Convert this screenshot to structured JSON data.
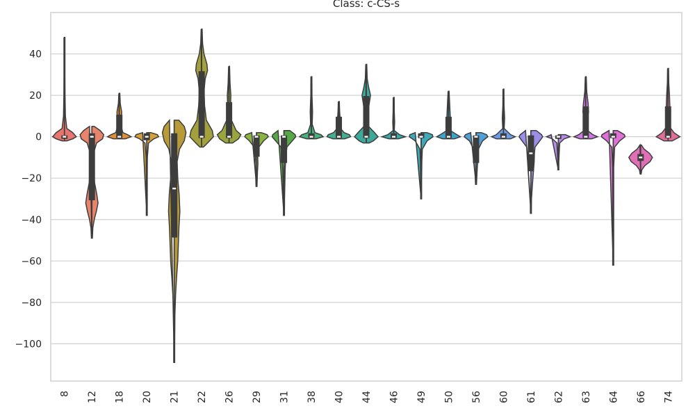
{
  "chart_data": {
    "type": "violin",
    "title": "Class: c-CS-s",
    "xlabel": "",
    "ylabel": "",
    "ylim": [
      -118,
      60
    ],
    "yticks": [
      40,
      20,
      0,
      -20,
      -40,
      -60,
      -80,
      -100
    ],
    "ytick_labels": [
      "40",
      "20",
      "0",
      "−20",
      "−40",
      "−60",
      "−80",
      "−100"
    ],
    "grid": true,
    "categories": [
      "8",
      "12",
      "18",
      "20",
      "21",
      "22",
      "26",
      "29",
      "31",
      "38",
      "40",
      "44",
      "46",
      "49",
      "50",
      "56",
      "60",
      "61",
      "62",
      "63",
      "64",
      "66",
      "74"
    ],
    "violins": [
      {
        "category": "8",
        "color": "#e8766f",
        "min": -2,
        "max": 48,
        "q1": 0,
        "median": 0,
        "q3": 0,
        "density": [
          [
            48,
            0.02
          ],
          [
            30,
            0.03
          ],
          [
            20,
            0.05
          ],
          [
            10,
            0.08
          ],
          [
            4,
            0.2
          ],
          [
            2,
            0.7
          ],
          [
            0,
            1.0
          ],
          [
            -1,
            0.7
          ],
          [
            -2,
            0.2
          ]
        ]
      },
      {
        "category": "12",
        "color": "#e8846a",
        "min": -49,
        "max": 5,
        "q1": -30,
        "median": 0,
        "q3": 1,
        "density": [
          [
            5,
            0.2
          ],
          [
            3,
            0.7
          ],
          [
            1,
            1.0
          ],
          [
            -1,
            0.9
          ],
          [
            -3,
            0.4
          ],
          [
            -8,
            0.14
          ],
          [
            -15,
            0.16
          ],
          [
            -22,
            0.22
          ],
          [
            -28,
            0.42
          ],
          [
            -32,
            0.52
          ],
          [
            -36,
            0.38
          ],
          [
            -40,
            0.2
          ],
          [
            -44,
            0.08
          ],
          [
            -49,
            0.03
          ]
        ]
      },
      {
        "category": "18",
        "color": "#e29038",
        "min": -1,
        "max": 21,
        "q1": 0,
        "median": 0,
        "q3": 10,
        "density": [
          [
            21,
            0.03
          ],
          [
            16,
            0.08
          ],
          [
            12,
            0.2
          ],
          [
            9,
            0.18
          ],
          [
            5,
            0.15
          ],
          [
            2,
            0.3
          ],
          [
            1,
            0.7
          ],
          [
            0,
            1.0
          ],
          [
            -1,
            0.5
          ]
        ]
      },
      {
        "category": "20",
        "color": "#d4a03a",
        "min": -38,
        "max": 2,
        "q1": -1,
        "median": 0,
        "q3": 1,
        "density": [
          [
            2,
            0.35
          ],
          [
            1,
            0.9
          ],
          [
            0,
            1.0
          ],
          [
            -1,
            0.6
          ],
          [
            -3,
            0.15
          ],
          [
            -10,
            0.05
          ],
          [
            -20,
            0.03
          ],
          [
            -38,
            0.02
          ]
        ]
      },
      {
        "category": "21",
        "color": "#b89a38",
        "min": -109,
        "max": 8,
        "q1": -48,
        "median": -25,
        "q3": 1,
        "density": [
          [
            8,
            0.4
          ],
          [
            5,
            0.85
          ],
          [
            2,
            1.0
          ],
          [
            -2,
            0.85
          ],
          [
            -6,
            0.45
          ],
          [
            -12,
            0.25
          ],
          [
            -20,
            0.3
          ],
          [
            -28,
            0.42
          ],
          [
            -36,
            0.48
          ],
          [
            -44,
            0.4
          ],
          [
            -52,
            0.35
          ],
          [
            -60,
            0.3
          ],
          [
            -68,
            0.2
          ],
          [
            -76,
            0.12
          ],
          [
            -86,
            0.06
          ],
          [
            -100,
            0.03
          ],
          [
            -109,
            0.02
          ]
        ]
      },
      {
        "category": "22",
        "color": "#a5a03e",
        "min": -5,
        "max": 52,
        "q1": 0,
        "median": 0,
        "q3": 31,
        "density": [
          [
            52,
            0.02
          ],
          [
            45,
            0.08
          ],
          [
            40,
            0.2
          ],
          [
            35,
            0.45
          ],
          [
            32,
            0.5
          ],
          [
            28,
            0.3
          ],
          [
            22,
            0.2
          ],
          [
            15,
            0.25
          ],
          [
            8,
            0.4
          ],
          [
            3,
            0.9
          ],
          [
            0,
            1.0
          ],
          [
            -3,
            0.5
          ],
          [
            -5,
            0.15
          ]
        ]
      },
      {
        "category": "26",
        "color": "#9aa63d",
        "min": -3,
        "max": 34,
        "q1": 0,
        "median": 0,
        "q3": 16,
        "density": [
          [
            34,
            0.03
          ],
          [
            26,
            0.08
          ],
          [
            20,
            0.15
          ],
          [
            14,
            0.12
          ],
          [
            8,
            0.2
          ],
          [
            3,
            0.6
          ],
          [
            1,
            1.0
          ],
          [
            -1,
            0.8
          ],
          [
            -3,
            0.3
          ]
        ]
      },
      {
        "category": "29",
        "color": "#8ab441",
        "min": -24,
        "max": 2,
        "q1": -9,
        "median": 0,
        "q3": 0,
        "density": [
          [
            2,
            0.4
          ],
          [
            1,
            0.9
          ],
          [
            0,
            1.0
          ],
          [
            -2,
            0.6
          ],
          [
            -5,
            0.2
          ],
          [
            -9,
            0.1
          ],
          [
            -13,
            0.12
          ],
          [
            -17,
            0.08
          ],
          [
            -24,
            0.03
          ]
        ]
      },
      {
        "category": "31",
        "color": "#55a845",
        "min": -38,
        "max": 3,
        "q1": -12,
        "median": 0,
        "q3": 0,
        "density": [
          [
            3,
            0.5
          ],
          [
            1,
            0.95
          ],
          [
            0,
            1.0
          ],
          [
            -2,
            0.7
          ],
          [
            -5,
            0.25
          ],
          [
            -10,
            0.15
          ],
          [
            -16,
            0.1
          ],
          [
            -22,
            0.08
          ],
          [
            -30,
            0.05
          ],
          [
            -38,
            0.02
          ]
        ]
      },
      {
        "category": "38",
        "color": "#48b07a",
        "min": -1,
        "max": 29,
        "q1": 0,
        "median": 0,
        "q3": 1,
        "density": [
          [
            29,
            0.02
          ],
          [
            20,
            0.05
          ],
          [
            12,
            0.1
          ],
          [
            6,
            0.07
          ],
          [
            2,
            0.3
          ],
          [
            1,
            0.8
          ],
          [
            0,
            1.0
          ],
          [
            -1,
            0.4
          ]
        ]
      },
      {
        "category": "40",
        "color": "#45ad90",
        "min": -1,
        "max": 17,
        "q1": 0,
        "median": 0,
        "q3": 9,
        "density": [
          [
            17,
            0.03
          ],
          [
            12,
            0.07
          ],
          [
            8,
            0.12
          ],
          [
            4,
            0.15
          ],
          [
            2,
            0.45
          ],
          [
            1,
            0.9
          ],
          [
            0,
            1.0
          ],
          [
            -1,
            0.5
          ]
        ]
      },
      {
        "category": "44",
        "color": "#3ea89a",
        "min": -3,
        "max": 35,
        "q1": 0,
        "median": 0,
        "q3": 19,
        "density": [
          [
            35,
            0.02
          ],
          [
            28,
            0.08
          ],
          [
            24,
            0.2
          ],
          [
            20,
            0.36
          ],
          [
            16,
            0.25
          ],
          [
            10,
            0.12
          ],
          [
            5,
            0.2
          ],
          [
            2,
            0.7
          ],
          [
            0,
            1.0
          ],
          [
            -2,
            0.6
          ],
          [
            -3,
            0.25
          ]
        ]
      },
      {
        "category": "46",
        "color": "#3aa9a8",
        "min": -1,
        "max": 19,
        "q1": 0,
        "median": 0,
        "q3": 1,
        "density": [
          [
            19,
            0.02
          ],
          [
            12,
            0.05
          ],
          [
            7,
            0.08
          ],
          [
            3,
            0.05
          ],
          [
            1,
            0.5
          ],
          [
            0,
            1.0
          ],
          [
            -1,
            0.4
          ]
        ]
      },
      {
        "category": "49",
        "color": "#3eaab8",
        "min": -30,
        "max": 2,
        "q1": 0,
        "median": 0,
        "q3": 1,
        "density": [
          [
            2,
            0.5
          ],
          [
            1,
            0.95
          ],
          [
            0,
            1.0
          ],
          [
            -2,
            0.5
          ],
          [
            -6,
            0.1
          ],
          [
            -12,
            0.06
          ],
          [
            -20,
            0.04
          ],
          [
            -30,
            0.02
          ]
        ]
      },
      {
        "category": "50",
        "color": "#3ca5c7",
        "min": -1,
        "max": 22,
        "q1": 0,
        "median": 0,
        "q3": 9,
        "density": [
          [
            22,
            0.03
          ],
          [
            15,
            0.1
          ],
          [
            10,
            0.14
          ],
          [
            6,
            0.1
          ],
          [
            3,
            0.15
          ],
          [
            1,
            0.7
          ],
          [
            0,
            1.0
          ],
          [
            -1,
            0.5
          ]
        ]
      },
      {
        "category": "56",
        "color": "#52a0d8",
        "min": -23,
        "max": 2,
        "q1": -12,
        "median": 0,
        "q3": 0,
        "density": [
          [
            2,
            0.45
          ],
          [
            1,
            0.9
          ],
          [
            0,
            1.0
          ],
          [
            -2,
            0.55
          ],
          [
            -6,
            0.2
          ],
          [
            -11,
            0.16
          ],
          [
            -14,
            0.12
          ],
          [
            -18,
            0.08
          ],
          [
            -23,
            0.03
          ]
        ]
      },
      {
        "category": "60",
        "color": "#6d9ee8",
        "min": -1,
        "max": 23,
        "q1": 0,
        "median": 0,
        "q3": 1,
        "density": [
          [
            23,
            0.02
          ],
          [
            15,
            0.05
          ],
          [
            9,
            0.1
          ],
          [
            4,
            0.06
          ],
          [
            1,
            0.6
          ],
          [
            0,
            1.0
          ],
          [
            -1,
            0.6
          ]
        ]
      },
      {
        "category": "61",
        "color": "#9b8ee8",
        "min": -37,
        "max": 3,
        "q1": -16,
        "median": -8,
        "q3": 0,
        "density": [
          [
            3,
            0.45
          ],
          [
            1,
            0.9
          ],
          [
            0,
            1.0
          ],
          [
            -2,
            0.75
          ],
          [
            -5,
            0.35
          ],
          [
            -8,
            0.3
          ],
          [
            -12,
            0.28
          ],
          [
            -18,
            0.2
          ],
          [
            -24,
            0.12
          ],
          [
            -30,
            0.05
          ],
          [
            -37,
            0.02
          ]
        ]
      },
      {
        "category": "62",
        "color": "#b88cea",
        "min": -16,
        "max": 1,
        "q1": 0,
        "median": 0,
        "q3": 0,
        "density": [
          [
            1,
            0.6
          ],
          [
            0,
            1.0
          ],
          [
            -1,
            0.5
          ],
          [
            -3,
            0.12
          ],
          [
            -7,
            0.08
          ],
          [
            -12,
            0.04
          ],
          [
            -16,
            0.02
          ]
        ]
      },
      {
        "category": "63",
        "color": "#d078e6",
        "min": -1,
        "max": 29,
        "q1": 0,
        "median": 0,
        "q3": 14,
        "density": [
          [
            29,
            0.02
          ],
          [
            22,
            0.08
          ],
          [
            16,
            0.2
          ],
          [
            12,
            0.24
          ],
          [
            8,
            0.12
          ],
          [
            3,
            0.15
          ],
          [
            1,
            0.6
          ],
          [
            0,
            1.0
          ],
          [
            -1,
            0.5
          ]
        ]
      },
      {
        "category": "64",
        "color": "#e06fd8",
        "min": -62,
        "max": 3,
        "q1": 0,
        "median": 0,
        "q3": 1,
        "density": [
          [
            3,
            0.35
          ],
          [
            1,
            0.95
          ],
          [
            0,
            1.0
          ],
          [
            -2,
            0.55
          ],
          [
            -5,
            0.12
          ],
          [
            -15,
            0.03
          ],
          [
            -40,
            0.02
          ],
          [
            -62,
            0.015
          ]
        ]
      },
      {
        "category": "66",
        "color": "#e16fb6",
        "min": -18,
        "max": -4,
        "q1": -11,
        "median": -10,
        "q3": -9,
        "density": [
          [
            -4,
            0.06
          ],
          [
            -6,
            0.3
          ],
          [
            -8,
            0.75
          ],
          [
            -10,
            1.0
          ],
          [
            -12,
            0.8
          ],
          [
            -14,
            0.35
          ],
          [
            -16,
            0.1
          ],
          [
            -18,
            0.03
          ]
        ]
      },
      {
        "category": "74",
        "color": "#e06f98",
        "min": -2,
        "max": 33,
        "q1": 0,
        "median": 0,
        "q3": 14,
        "density": [
          [
            33,
            0.02
          ],
          [
            26,
            0.06
          ],
          [
            20,
            0.12
          ],
          [
            15,
            0.15
          ],
          [
            10,
            0.08
          ],
          [
            5,
            0.1
          ],
          [
            2,
            0.5
          ],
          [
            0,
            1.0
          ],
          [
            -2,
            0.35
          ]
        ]
      }
    ]
  }
}
